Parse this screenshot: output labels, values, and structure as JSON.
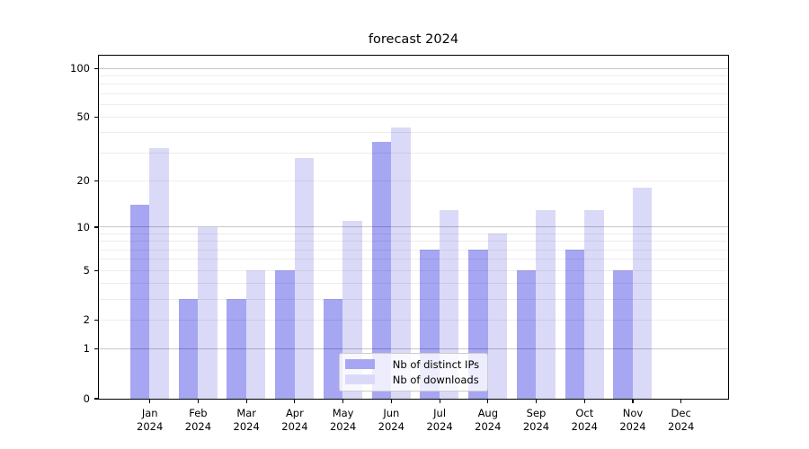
{
  "chart_data": {
    "type": "bar",
    "title": "forecast 2024",
    "year": "2024",
    "categories": [
      "Jan",
      "Feb",
      "Mar",
      "Apr",
      "May",
      "Jun",
      "Jul",
      "Aug",
      "Sep",
      "Oct",
      "Nov",
      "Dec"
    ],
    "series": [
      {
        "name": "Nb of distinct IPs",
        "color": "#a6a6f3",
        "values": [
          14,
          3,
          3,
          5,
          3,
          35,
          7,
          7,
          5,
          7,
          5,
          0
        ]
      },
      {
        "name": "Nb of downloads",
        "color": "#dadaf8",
        "values": [
          32,
          10,
          5,
          28,
          11,
          43,
          13,
          9,
          13,
          13,
          18,
          0
        ]
      }
    ],
    "xlabel": "",
    "ylabel": "",
    "yscale": "log1p",
    "ylim": [
      0,
      120
    ],
    "yticks": [
      100,
      50,
      20,
      10,
      5,
      2,
      1,
      0
    ],
    "grid": {
      "minor": [
        2,
        3,
        4,
        5,
        6,
        7,
        8,
        9,
        20,
        30,
        40,
        50,
        60,
        70,
        80,
        90
      ],
      "major": [
        1,
        10,
        100
      ]
    },
    "legend_position": "lower center"
  }
}
